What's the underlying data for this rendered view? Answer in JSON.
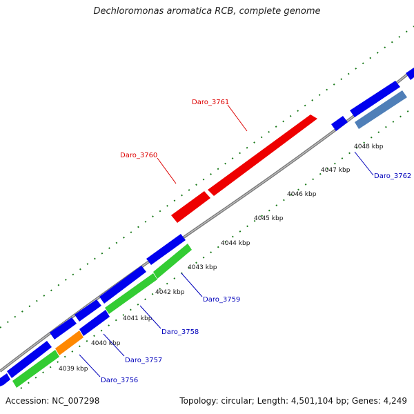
{
  "title": "Dechloromonas aromatica RCB, complete genome",
  "footer": {
    "accession": "Accession: NC_007298",
    "info": "Topology: circular; Length: 4,501,104 bp; Genes: 4,249"
  },
  "kbp_labels": [
    "4039 kbp",
    "4040 kbp",
    "4041 kbp",
    "4042 kbp",
    "4043 kbp",
    "4044 kbp",
    "4045 kbp",
    "4046 kbp",
    "4047 kbp",
    "4048 kbp"
  ],
  "gene_labels": {
    "daro_3756": "Daro_3756",
    "daro_3757": "Daro_3757",
    "daro_3758": "Daro_3758",
    "daro_3759": "Daro_3759",
    "daro_3760": "Daro_3760",
    "daro_3761": "Daro_3761",
    "daro_3762": "Daro_3762"
  },
  "colors": {
    "backbone": "#888888",
    "forward_gene": "#0000ee",
    "reverse_gene_highlight": "#ee0000",
    "green_gene": "#33cc33",
    "orange_gene": "#ff8800",
    "steel_gene": "#4f7fb8",
    "tick": "#1a7a1a",
    "highlight_label": "#dd0000",
    "normal_label": "#0000bb"
  }
}
